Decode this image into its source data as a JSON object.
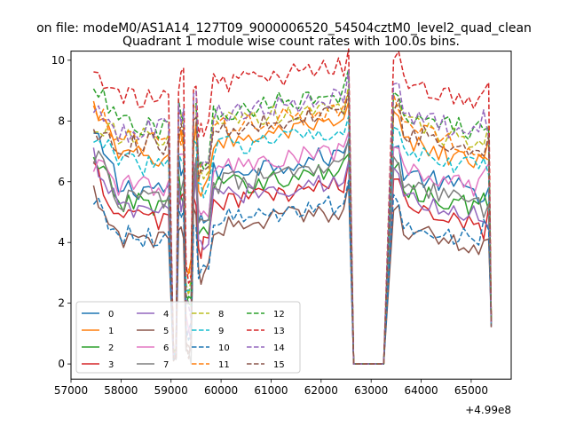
{
  "figure": {
    "suptitle": "on file: modeM0/AS1A14_127T09_9000006520_54504cztM0_level2_quad_clean",
    "offset_label": "+4.99e8"
  },
  "chart_data": {
    "type": "line",
    "title": "Quadrant 1 module wise count rates with 100.0s bins.",
    "xlabel": "",
    "ylabel": "",
    "xlim": [
      57000,
      65800
    ],
    "ylim": [
      -0.5,
      10.3
    ],
    "xticks": [
      57000,
      58000,
      59000,
      60000,
      61000,
      62000,
      63000,
      64000,
      65000
    ],
    "xtick_labels": [
      "57000",
      "58000",
      "59000",
      "60000",
      "61000",
      "62000",
      "63000",
      "64000",
      "65000"
    ],
    "yticks": [
      0,
      2,
      4,
      6,
      8,
      10
    ],
    "ytick_labels": [
      "0",
      "2",
      "4",
      "6",
      "8",
      "10"
    ],
    "x_offset": "+4.99e8",
    "grid": false,
    "legend_position": "lower-left",
    "legend_columns": 4,
    "x_segments": [
      [
        57450,
        59100,
        100
      ],
      [
        59100,
        59450,
        50
      ],
      [
        59450,
        59650,
        50
      ],
      [
        59650,
        62650,
        100
      ],
      [
        62650,
        63450,
        200
      ],
      [
        63450,
        65400,
        100
      ]
    ],
    "series_order": [
      "0",
      "1",
      "2",
      "3",
      "4",
      "5",
      "6",
      "7",
      "8",
      "9",
      "10",
      "11",
      "12",
      "13",
      "14",
      "15"
    ],
    "series": [
      {
        "name": "0",
        "color": "#1f77b4",
        "dash": "solid",
        "base": 6.0,
        "dip": 1.0,
        "start": 7.5,
        "gap_level": 0.0
      },
      {
        "name": "1",
        "color": "#ff7f0e",
        "dash": "solid",
        "base": 7.0,
        "dip": 3.2,
        "start": 8.5,
        "gap_level": 0.0
      },
      {
        "name": "2",
        "color": "#2ca02c",
        "dash": "solid",
        "base": 5.5,
        "dip": 2.0,
        "start": 6.6,
        "gap_level": 0.0
      },
      {
        "name": "3",
        "color": "#d62728",
        "dash": "solid",
        "base": 5.0,
        "dip": 0.5,
        "start": 6.4,
        "gap_level": 0.0
      },
      {
        "name": "4",
        "color": "#9467bd",
        "dash": "solid",
        "base": 5.2,
        "dip": 0.8,
        "start": 6.8,
        "gap_level": 0.0
      },
      {
        "name": "5",
        "color": "#8c564b",
        "dash": "solid",
        "base": 4.2,
        "dip": 0.6,
        "start": 5.5,
        "gap_level": 0.0
      },
      {
        "name": "6",
        "color": "#e377c2",
        "dash": "solid",
        "base": 6.1,
        "dip": 1.5,
        "start": 6.7,
        "gap_level": 0.0
      },
      {
        "name": "7",
        "color": "#7f7f7f",
        "dash": "solid",
        "base": 5.6,
        "dip": 0.3,
        "start": 6.9,
        "gap_level": 0.0
      },
      {
        "name": "8",
        "color": "#bcbd22",
        "dash": "dashed",
        "base": 7.6,
        "dip": 2.5,
        "start": 7.9,
        "gap_level": 0.0
      },
      {
        "name": "9",
        "color": "#17becf",
        "dash": "dashed",
        "base": 6.8,
        "dip": 2.2,
        "start": 7.5,
        "gap_level": 0.0
      },
      {
        "name": "10",
        "color": "#1f77b4",
        "dash": "dashed",
        "base": 4.4,
        "dip": 0.9,
        "start": 5.4,
        "gap_level": 0.0
      },
      {
        "name": "11",
        "color": "#ff7f0e",
        "dash": "dashed",
        "base": 7.5,
        "dip": 2.8,
        "start": 8.6,
        "gap_level": 0.0
      },
      {
        "name": "12",
        "color": "#2ca02c",
        "dash": "dashed",
        "base": 8.0,
        "dip": 2.0,
        "start": 9.1,
        "gap_level": 0.0
      },
      {
        "name": "13",
        "color": "#d62728",
        "dash": "dashed",
        "base": 8.9,
        "dip": 3.0,
        "start": 9.6,
        "gap_level": 0.0
      },
      {
        "name": "14",
        "color": "#9467bd",
        "dash": "dashed",
        "base": 7.9,
        "dip": 1.8,
        "start": 8.2,
        "gap_level": 0.0
      },
      {
        "name": "15",
        "color": "#8c564b",
        "dash": "dashed",
        "base": 7.4,
        "dip": 0.4,
        "start": 7.6,
        "gap_level": 0.0
      }
    ]
  }
}
